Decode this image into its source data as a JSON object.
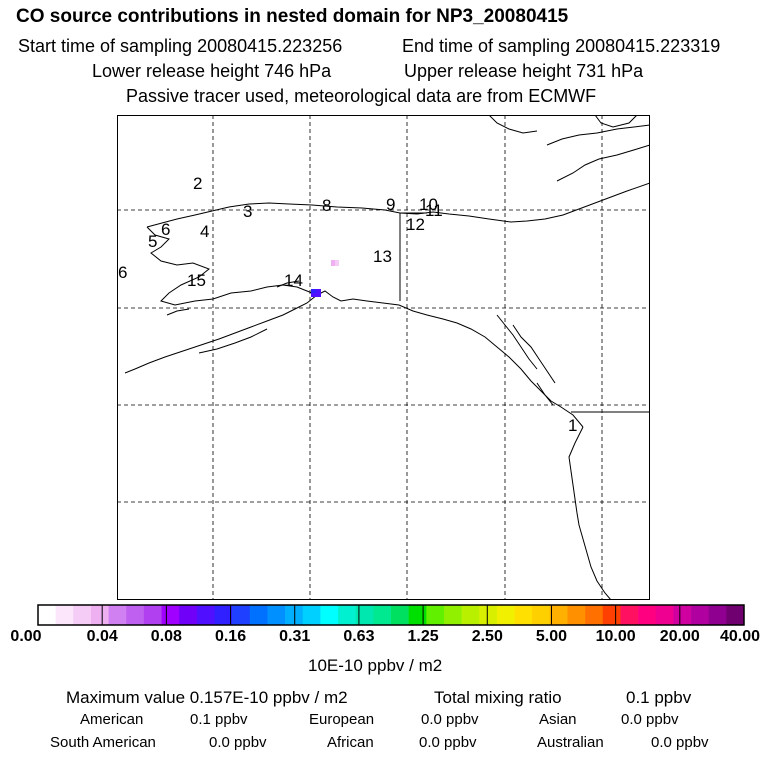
{
  "header": {
    "title": "CO  source contributions in nested domain for NP3_20080415",
    "start_time": "Start time of sampling 20080415.223256",
    "end_time": "End time of sampling 20080415.223319",
    "lower_height": "Lower release height  746 hPa",
    "upper_height": "Upper release height  731 hPa",
    "tracer_note": "Passive tracer used, meteorological data are from ECMWF"
  },
  "map": {
    "labels": [
      "2",
      "3",
      "8",
      "9",
      "10",
      "11",
      "12",
      "4",
      "5",
      "6",
      "13",
      "6",
      "15",
      "14",
      "1"
    ]
  },
  "colorbar": {
    "colors": [
      "#ffffff",
      "#fbe6fb",
      "#f5ccf5",
      "#eeb0f0",
      "#d080f0",
      "#c060f0",
      "#b040f0",
      "#a000ff",
      "#7000f8",
      "#5010ff",
      "#3020ff",
      "#2040ff",
      "#0070ff",
      "#0090ff",
      "#00b0ff",
      "#00d0ff",
      "#00ffff",
      "#00f0d0",
      "#00e8b0",
      "#00e890",
      "#00e060",
      "#00e000",
      "#60f000",
      "#90f000",
      "#b8f000",
      "#d8f000",
      "#f0f000",
      "#ffe000",
      "#ffd000",
      "#ffb000",
      "#ff9000",
      "#ff7000",
      "#ff4000",
      "#ff1060",
      "#ff0080",
      "#f00090",
      "#d000a0",
      "#b000a0",
      "#900090",
      "#700070"
    ],
    "ticks": [
      "0.00",
      "0.04",
      "0.08",
      "0.16",
      "0.31",
      "0.63",
      "1.25",
      "2.50",
      "5.00",
      "10.00",
      "20.00",
      "40.00"
    ],
    "unit": "10E-10 ppbv / m2"
  },
  "summary": {
    "max_label": "Maximum value  0.157E-10 ppbv / m2",
    "total_label": "Total mixing ratio",
    "total_value": "0.1 ppbv",
    "regions": [
      {
        "name": "American",
        "value": "0.1 ppbv"
      },
      {
        "name": "European",
        "value": "0.0 ppbv"
      },
      {
        "name": "Asian",
        "value": "0.0 ppbv"
      },
      {
        "name": "South American",
        "value": "0.0 ppbv"
      },
      {
        "name": "African",
        "value": "0.0 ppbv"
      },
      {
        "name": "Australian",
        "value": "0.0 ppbv"
      }
    ]
  }
}
